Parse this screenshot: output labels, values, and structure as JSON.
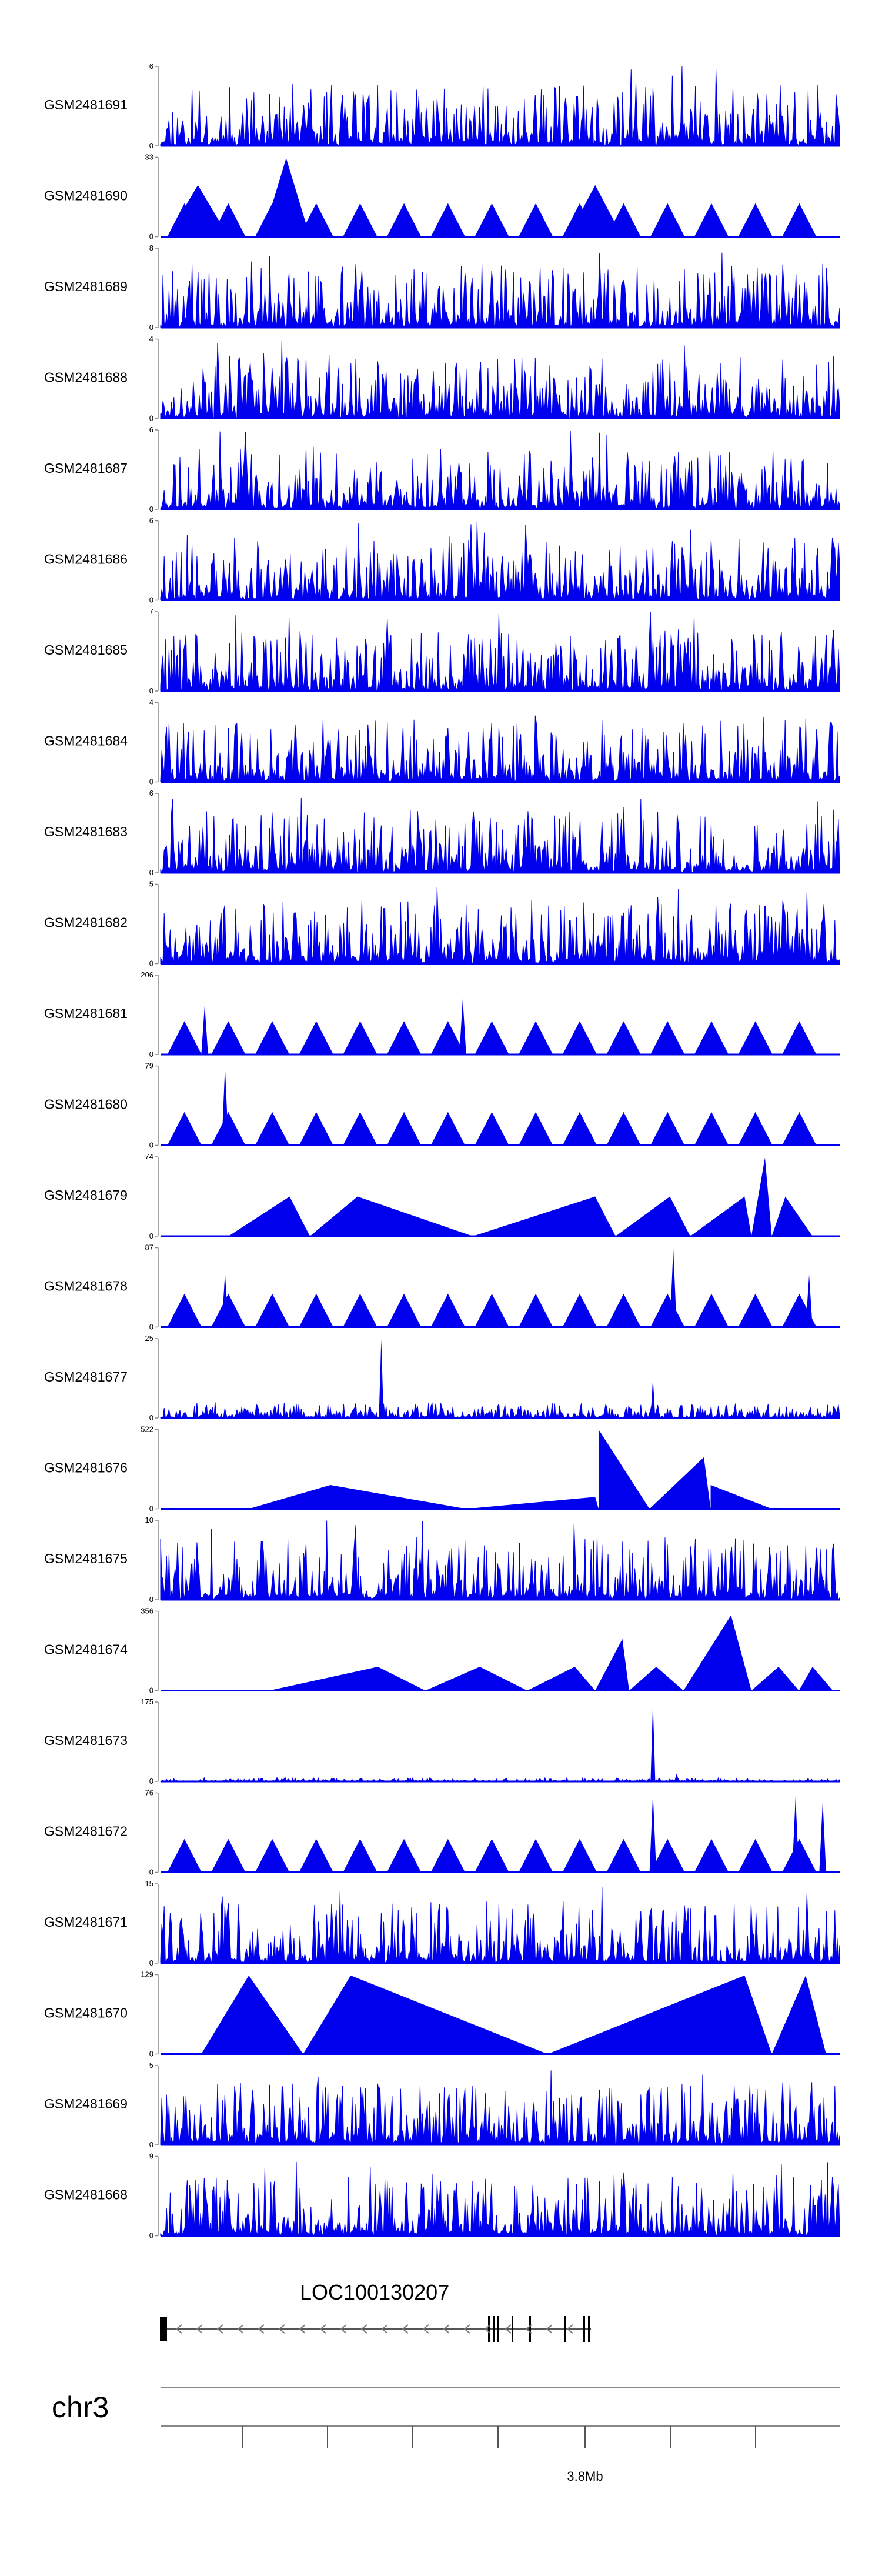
{
  "chart_data": {
    "type": "area",
    "title": "",
    "tracks": [
      {
        "name": "GSM2481691",
        "ymax": "6",
        "ymin": "0",
        "style": "noisy",
        "seed": 11
      },
      {
        "name": "GSM2481690",
        "ymax": "33",
        "ymin": "0",
        "style": "sparse-triangles",
        "peaks": [
          [
            0.01,
            0.1,
            0.65
          ],
          [
            0.15,
            0.22,
            0.99
          ],
          [
            0.6,
            0.68,
            0.65
          ]
        ]
      },
      {
        "name": "GSM2481689",
        "ymax": "8",
        "ymin": "0",
        "style": "noisy",
        "seed": 13
      },
      {
        "name": "GSM2481688",
        "ymax": "4",
        "ymin": "0",
        "style": "noisy",
        "seed": 17
      },
      {
        "name": "GSM2481687",
        "ymax": "6",
        "ymin": "0",
        "style": "noisy",
        "seed": 19
      },
      {
        "name": "GSM2481686",
        "ymax": "6",
        "ymin": "0",
        "style": "noisy",
        "seed": 23
      },
      {
        "name": "GSM2481685",
        "ymax": "7",
        "ymin": "0",
        "style": "noisy",
        "seed": 29
      },
      {
        "name": "GSM2481684",
        "ymax": "4",
        "ymin": "0",
        "style": "noisy",
        "seed": 31
      },
      {
        "name": "GSM2481683",
        "ymax": "6",
        "ymin": "0",
        "style": "noisy",
        "seed": 37
      },
      {
        "name": "GSM2481682",
        "ymax": "5",
        "ymin": "0",
        "style": "noisy",
        "seed": 41
      },
      {
        "name": "GSM2481681",
        "ymax": "206",
        "ymin": "0",
        "style": "sparse-triangles",
        "peaks": [
          [
            0.06,
            0.07,
            0.62
          ],
          [
            0.44,
            0.45,
            0.7
          ]
        ]
      },
      {
        "name": "GSM2481680",
        "ymax": "79",
        "ymin": "0",
        "style": "sparse-triangles",
        "peaks": [
          [
            0.09,
            0.1,
            0.99
          ]
        ]
      },
      {
        "name": "GSM2481679",
        "ymax": "74",
        "ymin": "0",
        "style": "wide-triangles",
        "tri": [
          [
            0.1,
            0.19,
            0.22,
            0.5
          ],
          [
            0.22,
            0.29,
            0.46,
            0.5
          ],
          [
            0.46,
            0.64,
            0.67,
            0.5
          ],
          [
            0.67,
            0.75,
            0.78,
            0.5
          ],
          [
            0.78,
            0.86,
            0.87,
            0.5
          ],
          [
            0.87,
            0.89,
            0.9,
            0.99
          ],
          [
            0.9,
            0.92,
            0.96,
            0.5
          ]
        ]
      },
      {
        "name": "GSM2481678",
        "ymax": "87",
        "ymin": "0",
        "style": "sparse-triangles",
        "peaks": [
          [
            0.09,
            0.1,
            0.68
          ],
          [
            0.75,
            0.76,
            0.99
          ],
          [
            0.95,
            0.96,
            0.66
          ]
        ]
      },
      {
        "name": "GSM2481677",
        "ymax": "25",
        "ymin": "0",
        "style": "low-noisy",
        "seed": 43,
        "spikes": [
          [
            0.325,
            0.99
          ],
          [
            0.725,
            0.5
          ]
        ]
      },
      {
        "name": "GSM2481676",
        "ymax": "522",
        "ymin": "0",
        "style": "wide-triangles",
        "tri": [
          [
            0.13,
            0.25,
            0.45,
            0.3
          ],
          [
            0.45,
            0.64,
            0.645,
            0.15
          ],
          [
            0.645,
            0.645,
            0.72,
            1.0
          ],
          [
            0.72,
            0.8,
            0.81,
            0.65
          ],
          [
            0.81,
            0.81,
            0.9,
            0.3
          ]
        ]
      },
      {
        "name": "GSM2481675",
        "ymax": "10",
        "ymin": "0",
        "style": "noisy",
        "seed": 47
      },
      {
        "name": "GSM2481674",
        "ymax": "356",
        "ymin": "0",
        "style": "wide-triangles",
        "tri": [
          [
            0.16,
            0.32,
            0.39,
            0.3
          ],
          [
            0.39,
            0.47,
            0.54,
            0.3
          ],
          [
            0.54,
            0.61,
            0.64,
            0.3
          ],
          [
            0.64,
            0.68,
            0.69,
            0.65
          ],
          [
            0.69,
            0.73,
            0.77,
            0.3
          ],
          [
            0.77,
            0.84,
            0.87,
            0.95
          ],
          [
            0.87,
            0.91,
            0.94,
            0.3
          ],
          [
            0.94,
            0.96,
            0.99,
            0.3
          ]
        ]
      },
      {
        "name": "GSM2481673",
        "ymax": "175",
        "ymin": "0",
        "style": "flat-spike",
        "seed": 53,
        "spikes": [
          [
            0.725,
            0.99
          ],
          [
            0.76,
            0.1
          ]
        ]
      },
      {
        "name": "GSM2481672",
        "ymax": "76",
        "ymin": "0",
        "style": "sparse-triangles",
        "peaks": [
          [
            0.72,
            0.73,
            0.99
          ],
          [
            0.93,
            0.94,
            0.95
          ],
          [
            0.97,
            0.98,
            0.9
          ]
        ]
      },
      {
        "name": "GSM2481671",
        "ymax": "15",
        "ymin": "0",
        "style": "noisy",
        "seed": 59
      },
      {
        "name": "GSM2481670",
        "ymax": "129",
        "ymin": "0",
        "style": "wide-triangles",
        "tri": [
          [
            0.06,
            0.13,
            0.21,
            0.99
          ],
          [
            0.21,
            0.28,
            0.57,
            0.99
          ],
          [
            0.57,
            0.86,
            0.9,
            0.99
          ],
          [
            0.9,
            0.95,
            0.98,
            0.99
          ]
        ]
      },
      {
        "name": "GSM2481669",
        "ymax": "5",
        "ymin": "0",
        "style": "noisy",
        "seed": 61
      },
      {
        "name": "GSM2481668",
        "ymax": "9",
        "ymin": "0",
        "style": "noisy",
        "seed": 67
      }
    ],
    "gene": {
      "name": "LOC100130207",
      "strand": "-"
    },
    "chromosome": "chr3",
    "axis": {
      "tick_label": "3.8Mb"
    },
    "colors": {
      "signal": "#0000ee",
      "axis": "#888888"
    }
  }
}
